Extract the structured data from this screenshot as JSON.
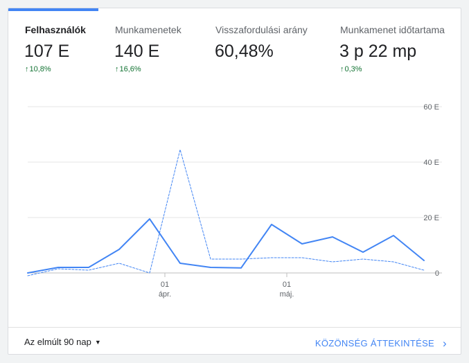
{
  "metric_tabs": [
    {
      "label": "Felhasználók",
      "value": "107 E",
      "delta": "10,8%",
      "active": true
    },
    {
      "label": "Munkamenetek",
      "value": "140 E",
      "delta": "16,6%",
      "active": false
    },
    {
      "label": "Visszafordulási arány",
      "value": "60,48%",
      "delta": "",
      "active": false
    },
    {
      "label": "Munkamenet időtartama",
      "value": "3 p 22 mp",
      "delta": "0,3%",
      "active": false
    }
  ],
  "delta_arrow_icon": "arrow-up-icon",
  "chart_data": {
    "type": "line",
    "y_tick_labels": [
      "0",
      "20 E",
      "40 E",
      "60 E"
    ],
    "ylim": [
      0,
      60000
    ],
    "x_tick_labels": [
      {
        "day": "01",
        "month": "ápr."
      },
      {
        "day": "01",
        "month": "máj."
      }
    ],
    "x_tick_positions": [
      4.5,
      8.5
    ],
    "xlim": [
      0,
      13
    ],
    "grid": true,
    "series": [
      {
        "style": "solid",
        "color": "#4285f4",
        "values": [
          0,
          2000,
          2000,
          8500,
          19500,
          3500,
          2000,
          1800,
          17500,
          10500,
          13000,
          7500,
          13500,
          4500
        ]
      },
      {
        "style": "dashed",
        "color": "#4285f4",
        "values": [
          -1000,
          1500,
          1000,
          3500,
          0,
          44500,
          5000,
          5000,
          5500,
          5500,
          4000,
          5000,
          4000,
          1000
        ]
      }
    ]
  },
  "footer": {
    "date_range": "Az elmúlt 90 nap",
    "overview_link": "KÖZÖNSÉG ÁTTEKINTÉSE"
  }
}
